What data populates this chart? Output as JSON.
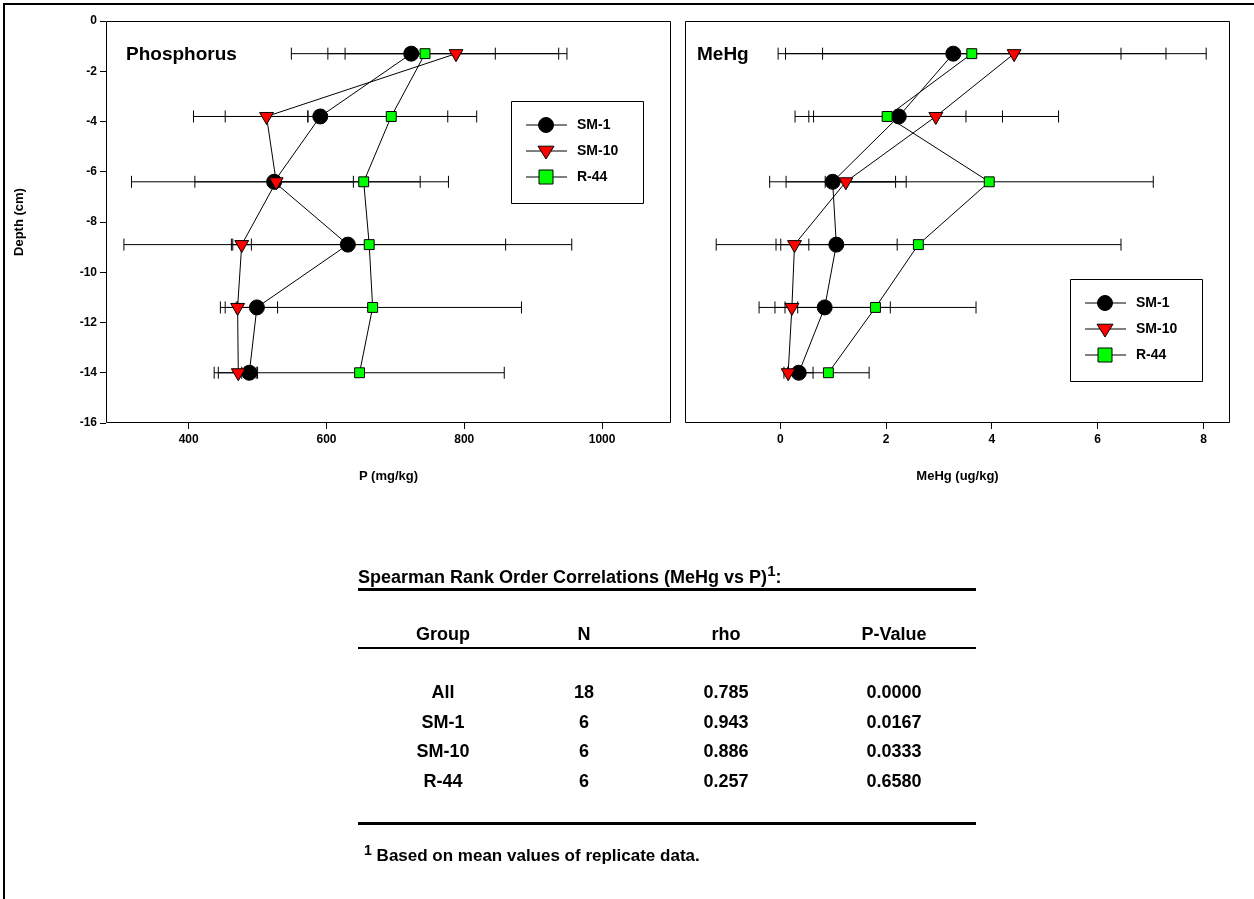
{
  "chart_data": [
    {
      "type": "line",
      "title": "Phosphorus",
      "xlabel": "P (mg/kg)",
      "ylabel": "Depth (cm)",
      "xlim": [
        280,
        1100
      ],
      "xticks": [
        400,
        600,
        800,
        1000
      ],
      "ylim": [
        -16,
        0
      ],
      "yticks": [
        0,
        -2,
        -4,
        -6,
        -8,
        -10,
        -12,
        -14,
        -16
      ],
      "grid": false,
      "legend": "top right",
      "series": [
        {
          "name": "SM-1",
          "color": "#000000",
          "marker": "circle",
          "x": [
            723,
            591,
            524,
            631,
            499,
            488
          ],
          "values": [
            -1.3,
            -3.8,
            -6.4,
            -8.9,
            -11.4,
            -14.0
          ],
          "xerrors": [
            [
              602,
              845
            ],
            [
              407,
              776
            ],
            [
              409,
              639
            ],
            [
              306,
              956
            ],
            [
              469,
              529
            ],
            [
              477,
              498
            ]
          ]
        },
        {
          "name": "SM-10",
          "color": "#ff0000",
          "marker": "triangle",
          "x": [
            788,
            513,
            527,
            477,
            471,
            472
          ],
          "values": [
            -1.3,
            -3.8,
            -6.4,
            -8.9,
            -11.4,
            -14.0
          ],
          "xerrors": [
            [
              627,
              937
            ],
            [
              453,
              573
            ],
            [
              317,
              736
            ],
            [
              462,
              491
            ],
            [
              446,
              471
            ],
            [
              443,
              500
            ]
          ]
        },
        {
          "name": "R-44",
          "color": "#00ff00",
          "marker": "square",
          "x": [
            743,
            694,
            654,
            662,
            667,
            648
          ],
          "values": [
            -1.3,
            -3.8,
            -6.4,
            -8.9,
            -11.4,
            -14.0
          ],
          "xerrors": [
            [
              549,
              949
            ],
            [
              573,
              818
            ],
            [
              532,
              777
            ],
            [
              464,
              860
            ],
            [
              453,
              883
            ],
            [
              437,
              858
            ]
          ]
        }
      ]
    },
    {
      "type": "line",
      "title": "MeHg",
      "xlabel": "MeHg (ug/kg)",
      "xlim": [
        -1.8,
        8.5
      ],
      "xticks": [
        0,
        2,
        4,
        6,
        8
      ],
      "ylim": [
        -16,
        0
      ],
      "yticks": [
        0,
        -2,
        -4,
        -6,
        -8,
        -10,
        -12,
        -14,
        -16
      ],
      "tick_labels": "x",
      "grid": false,
      "legend": "bottom right",
      "series": [
        {
          "name": "SM-1",
          "color": "#000000",
          "marker": "circle",
          "x": [
            3.27,
            2.24,
            0.99,
            1.06,
            0.84,
            0.35
          ],
          "values": [
            -1.3,
            -3.8,
            -6.4,
            -8.9,
            -11.4,
            -14.0
          ],
          "xerrors": [
            [
              0.1,
              6.44
            ],
            [
              0.28,
              4.2
            ],
            [
              -0.2,
              2.18
            ],
            [
              -0.08,
              2.21
            ],
            [
              -0.4,
              2.08
            ],
            [
              0.07,
              0.62
            ]
          ]
        },
        {
          "name": "SM-10",
          "color": "#ff0000",
          "marker": "triangle",
          "x": [
            4.42,
            2.94,
            1.24,
            0.27,
            0.22,
            0.15
          ],
          "values": [
            -1.3,
            -3.8,
            -6.4,
            -8.9,
            -11.4,
            -14.0
          ],
          "xerrors": [
            [
              0.8,
              8.05
            ],
            [
              0.63,
              5.26
            ],
            [
              0.11,
              2.38
            ],
            [
              0.01,
              0.54
            ],
            [
              0.09,
              0.33
            ],
            null
          ]
        },
        {
          "name": "R-44",
          "color": "#00ff00",
          "marker": "square",
          "x": [
            3.62,
            2.02,
            3.95,
            2.61,
            1.8,
            0.91
          ],
          "values": [
            -1.3,
            -3.8,
            -6.4,
            -8.9,
            -11.4,
            -14.0
          ],
          "xerrors": [
            [
              -0.04,
              7.29
            ],
            [
              0.54,
              3.51
            ],
            [
              0.85,
              7.05
            ],
            [
              -1.21,
              6.44
            ],
            [
              -0.1,
              3.7
            ],
            [
              0.14,
              1.68
            ]
          ]
        }
      ]
    },
    {
      "type": "other",
      "title": "Spearman Rank Order Correlations (MeHg vs P)$^{1}$:",
      "categories": [
        "Group",
        "N",
        "rho",
        "P-Value"
      ],
      "y_categories": [
        "All",
        "SM-1",
        "SM-10",
        "R-44"
      ],
      "cell_labels": [
        [
          "18",
          "0.785",
          "0.0000"
        ],
        [
          "6",
          "0.943",
          "0.0167"
        ],
        [
          "6",
          "0.886",
          "0.0333"
        ],
        [
          "6",
          "0.257",
          "0.6580"
        ]
      ],
      "annotations": [
        "$^{1}$ Based on mean values of replicate data."
      ]
    }
  ]
}
